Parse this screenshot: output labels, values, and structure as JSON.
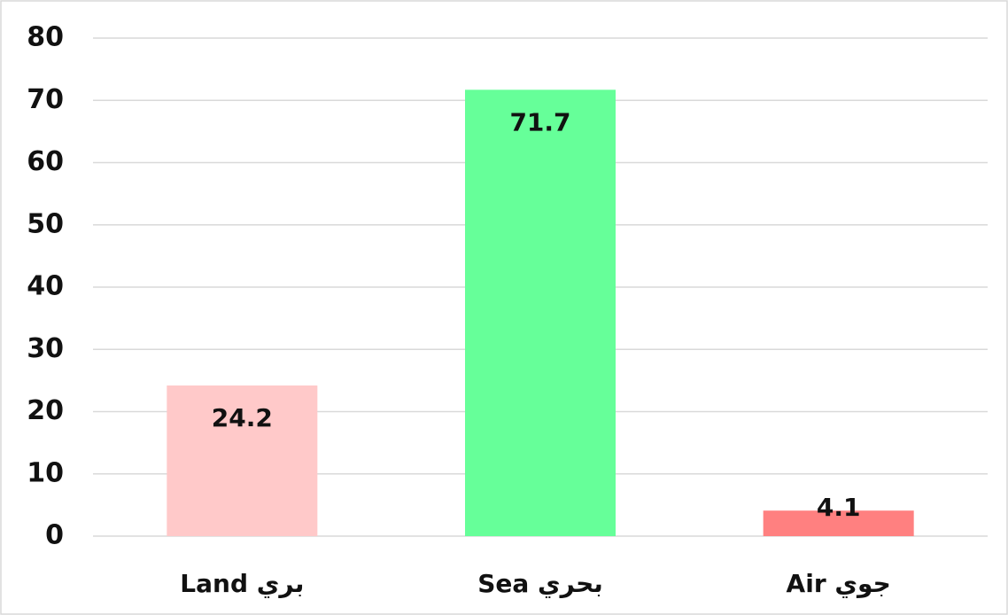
{
  "chart_data": {
    "type": "bar",
    "categories": [
      "Land بري",
      "Sea بحري",
      "Air جوي"
    ],
    "values": [
      24.2,
      71.7,
      4.1
    ],
    "colors": [
      "#ffc9c9",
      "#66ff99",
      "#ff8080"
    ],
    "ylim": [
      0,
      80
    ],
    "yticks": [
      0,
      10,
      20,
      30,
      40,
      50,
      60,
      70,
      80
    ],
    "grid": true
  }
}
